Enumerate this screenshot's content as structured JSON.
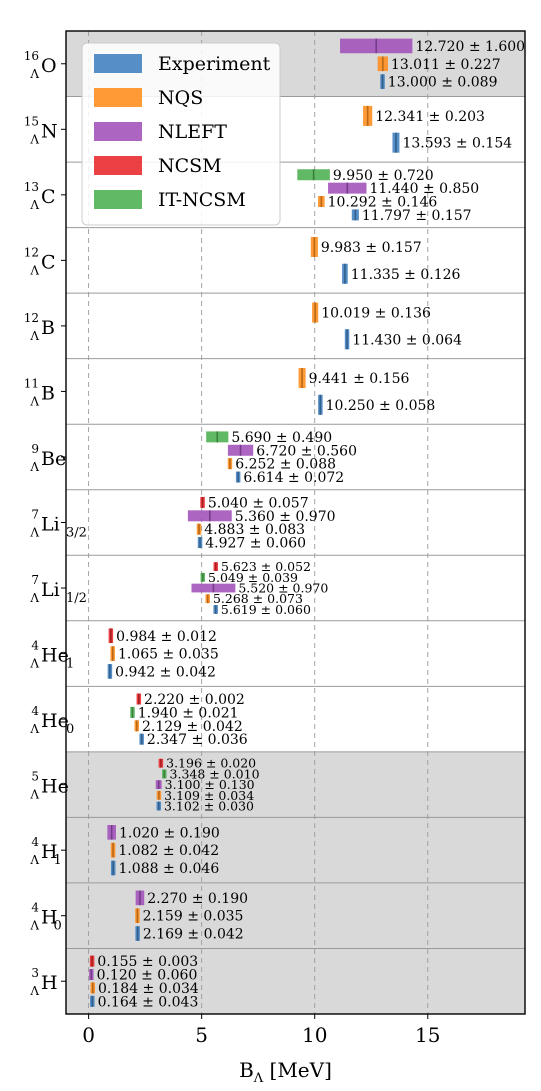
{
  "chart_data": {
    "type": "bar",
    "orientation": "horizontal-range",
    "xlabel_main": "B",
    "xlabel_sub": "Λ",
    "xlabel_unit": " [MeV]",
    "xlim": [
      -1,
      19.3
    ],
    "xticks": [
      0,
      5,
      10,
      15
    ],
    "grid": "vertical dashed",
    "legend_position": "top-left",
    "legend": [
      {
        "name": "Experiment",
        "color": "#3f7fbf"
      },
      {
        "name": "NQS",
        "color": "#ff8c1a"
      },
      {
        "name": "NLEFT",
        "color": "#a050b8"
      },
      {
        "name": "NCSM",
        "color": "#e8262a"
      },
      {
        "name": "IT-NCSM",
        "color": "#4caf50"
      }
    ],
    "colors": {
      "Experiment": "#3f7fbf",
      "NQS": "#ff8c1a",
      "NLEFT": "#a050b8",
      "NCSM": "#e8262a",
      "IT-NCSM": "#4caf50"
    },
    "shaded_rows": [
      "O16",
      "He5",
      "H1_4",
      "H0_4",
      "H3"
    ],
    "nuclei": [
      {
        "id": "O16",
        "sup": "16",
        "sub": "Λ",
        "el": "O",
        "elsub": "",
        "entries": [
          {
            "method": "NLEFT",
            "value": 12.72,
            "error": 1.6,
            "label": "12.720 ± 1.600"
          },
          {
            "method": "NQS",
            "value": 13.011,
            "error": 0.227,
            "label": "13.011 ± 0.227"
          },
          {
            "method": "Experiment",
            "value": 13.0,
            "error": 0.089,
            "label": "13.000 ± 0.089"
          }
        ]
      },
      {
        "id": "N15",
        "sup": "15",
        "sub": "Λ",
        "el": "N",
        "elsub": "",
        "entries": [
          {
            "method": "NQS",
            "value": 12.341,
            "error": 0.203,
            "label": "12.341 ± 0.203"
          },
          {
            "method": "Experiment",
            "value": 13.593,
            "error": 0.154,
            "label": "13.593 ± 0.154"
          }
        ]
      },
      {
        "id": "C13",
        "sup": "13",
        "sub": "Λ",
        "el": "C",
        "elsub": "",
        "entries": [
          {
            "method": "IT-NCSM",
            "value": 9.95,
            "error": 0.72,
            "label": "9.950 ± 0.720"
          },
          {
            "method": "NLEFT",
            "value": 11.44,
            "error": 0.85,
            "label": "11.440 ± 0.850"
          },
          {
            "method": "NQS",
            "value": 10.292,
            "error": 0.146,
            "label": "10.292 ± 0.146"
          },
          {
            "method": "Experiment",
            "value": 11.797,
            "error": 0.157,
            "label": "11.797 ± 0.157"
          }
        ]
      },
      {
        "id": "C12",
        "sup": "12",
        "sub": "Λ",
        "el": "C",
        "elsub": "",
        "entries": [
          {
            "method": "NQS",
            "value": 9.983,
            "error": 0.157,
            "label": "9.983 ± 0.157"
          },
          {
            "method": "Experiment",
            "value": 11.335,
            "error": 0.126,
            "label": "11.335 ± 0.126"
          }
        ]
      },
      {
        "id": "B12",
        "sup": "12",
        "sub": "Λ",
        "el": "B",
        "elsub": "",
        "entries": [
          {
            "method": "NQS",
            "value": 10.019,
            "error": 0.136,
            "label": "10.019 ± 0.136"
          },
          {
            "method": "Experiment",
            "value": 11.43,
            "error": 0.064,
            "label": "11.430 ± 0.064"
          }
        ]
      },
      {
        "id": "B11",
        "sup": "11",
        "sub": "Λ",
        "el": "B",
        "elsub": "",
        "entries": [
          {
            "method": "NQS",
            "value": 9.441,
            "error": 0.156,
            "label": "9.441 ± 0.156"
          },
          {
            "method": "Experiment",
            "value": 10.25,
            "error": 0.058,
            "label": "10.250 ± 0.058"
          }
        ]
      },
      {
        "id": "Be9",
        "sup": "9",
        "sub": "Λ",
        "el": "Be",
        "elsub": "",
        "entries": [
          {
            "method": "IT-NCSM",
            "value": 5.69,
            "error": 0.49,
            "label": "5.690 ± 0.490"
          },
          {
            "method": "NLEFT",
            "value": 6.72,
            "error": 0.56,
            "label": "6.720 ± 0.560"
          },
          {
            "method": "NQS",
            "value": 6.252,
            "error": 0.088,
            "label": "6.252 ± 0.088"
          },
          {
            "method": "Experiment",
            "value": 6.614,
            "error": 0.072,
            "label": "6.614 ± 0.072"
          }
        ]
      },
      {
        "id": "Li7_32",
        "sup": "7",
        "sub": "Λ",
        "el": "Li",
        "elsub": "3/2",
        "entries": [
          {
            "method": "NCSM",
            "value": 5.04,
            "error": 0.057,
            "label": "5.040 ± 0.057"
          },
          {
            "method": "NLEFT",
            "value": 5.36,
            "error": 0.97,
            "label": "5.360 ± 0.970"
          },
          {
            "method": "NQS",
            "value": 4.883,
            "error": 0.083,
            "label": "4.883 ± 0.083"
          },
          {
            "method": "Experiment",
            "value": 4.927,
            "error": 0.06,
            "label": "4.927 ± 0.060"
          }
        ]
      },
      {
        "id": "Li7_12",
        "sup": "7",
        "sub": "Λ",
        "el": "Li",
        "elsub": "1/2",
        "entries": [
          {
            "method": "NCSM",
            "value": 5.623,
            "error": 0.052,
            "label": "5.623 ± 0.052"
          },
          {
            "method": "IT-NCSM",
            "value": 5.049,
            "error": 0.039,
            "label": "5.049 ± 0.039"
          },
          {
            "method": "NLEFT",
            "value": 5.52,
            "error": 0.97,
            "label": "5.520 ± 0.970"
          },
          {
            "method": "NQS",
            "value": 5.268,
            "error": 0.073,
            "label": "5.268 ± 0.073"
          },
          {
            "method": "Experiment",
            "value": 5.619,
            "error": 0.06,
            "label": "5.619 ± 0.060"
          }
        ]
      },
      {
        "id": "He1_4",
        "sup": "4",
        "sub": "Λ",
        "el": "He",
        "elsub": "1",
        "entries": [
          {
            "method": "NCSM",
            "value": 0.984,
            "error": 0.012,
            "label": "0.984 ± 0.012"
          },
          {
            "method": "NQS",
            "value": 1.065,
            "error": 0.035,
            "label": "1.065 ± 0.035"
          },
          {
            "method": "Experiment",
            "value": 0.942,
            "error": 0.042,
            "label": "0.942 ± 0.042"
          }
        ]
      },
      {
        "id": "He0_4",
        "sup": "4",
        "sub": "Λ",
        "el": "He",
        "elsub": "0",
        "entries": [
          {
            "method": "NCSM",
            "value": 2.22,
            "error": 0.002,
            "label": "2.220 ± 0.002"
          },
          {
            "method": "IT-NCSM",
            "value": 1.94,
            "error": 0.021,
            "label": "1.940 ± 0.021"
          },
          {
            "method": "NQS",
            "value": 2.129,
            "error": 0.042,
            "label": "2.129 ± 0.042"
          },
          {
            "method": "Experiment",
            "value": 2.347,
            "error": 0.036,
            "label": "2.347 ± 0.036"
          }
        ]
      },
      {
        "id": "He5",
        "sup": "5",
        "sub": "Λ",
        "el": "He",
        "elsub": "",
        "entries": [
          {
            "method": "NCSM",
            "value": 3.196,
            "error": 0.02,
            "label": "3.196 ± 0.020"
          },
          {
            "method": "IT-NCSM",
            "value": 3.348,
            "error": 0.01,
            "label": "3.348 ± 0.010"
          },
          {
            "method": "NLEFT",
            "value": 3.1,
            "error": 0.13,
            "label": "3.100 ± 0.130"
          },
          {
            "method": "NQS",
            "value": 3.109,
            "error": 0.034,
            "label": "3.109 ± 0.034"
          },
          {
            "method": "Experiment",
            "value": 3.102,
            "error": 0.03,
            "label": "3.102 ± 0.030"
          }
        ]
      },
      {
        "id": "H1_4",
        "sup": "4",
        "sub": "Λ",
        "el": "H",
        "elsub": "1",
        "entries": [
          {
            "method": "NLEFT",
            "value": 1.02,
            "error": 0.19,
            "label": "1.020 ± 0.190"
          },
          {
            "method": "NQS",
            "value": 1.082,
            "error": 0.042,
            "label": "1.082 ± 0.042"
          },
          {
            "method": "Experiment",
            "value": 1.088,
            "error": 0.046,
            "label": "1.088 ± 0.046"
          }
        ]
      },
      {
        "id": "H0_4",
        "sup": "4",
        "sub": "Λ",
        "el": "H",
        "elsub": "0",
        "entries": [
          {
            "method": "NLEFT",
            "value": 2.27,
            "error": 0.19,
            "label": "2.270 ± 0.190"
          },
          {
            "method": "NQS",
            "value": 2.159,
            "error": 0.035,
            "label": "2.159 ± 0.035"
          },
          {
            "method": "Experiment",
            "value": 2.169,
            "error": 0.042,
            "label": "2.169 ± 0.042"
          }
        ]
      },
      {
        "id": "H3",
        "sup": "3",
        "sub": "Λ",
        "el": "H",
        "elsub": "",
        "entries": [
          {
            "method": "NCSM",
            "value": 0.155,
            "error": 0.003,
            "label": "0.155 ± 0.003"
          },
          {
            "method": "NLEFT",
            "value": 0.12,
            "error": 0.06,
            "label": "0.120 ± 0.060"
          },
          {
            "method": "NQS",
            "value": 0.184,
            "error": 0.034,
            "label": "0.184 ± 0.034"
          },
          {
            "method": "Experiment",
            "value": 0.164,
            "error": 0.043,
            "label": "0.164 ± 0.043"
          }
        ]
      }
    ]
  }
}
